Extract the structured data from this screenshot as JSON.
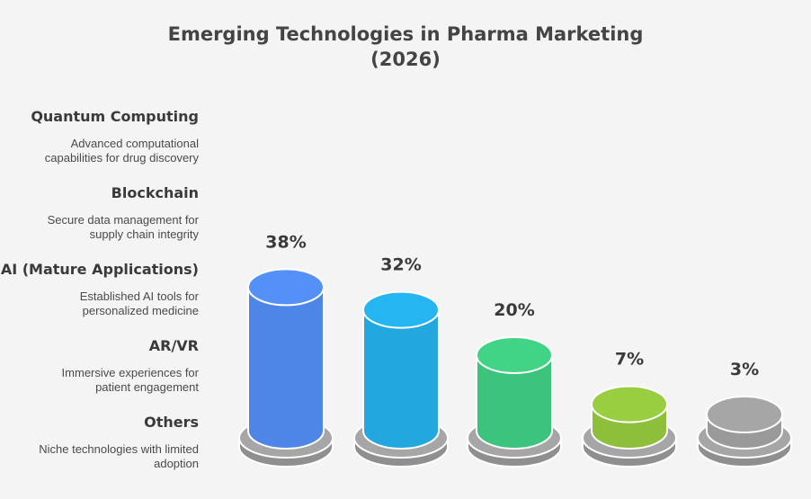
{
  "title_lines": [
    "Emerging Technologies in Pharma Marketing",
    "(2026)"
  ],
  "legend": [
    {
      "name": "Quantum Computing",
      "desc_lines": [
        "Advanced computational",
        "capabilities for drug discovery"
      ]
    },
    {
      "name": "Blockchain",
      "desc_lines": [
        "Secure data management for",
        "supply chain integrity"
      ]
    },
    {
      "name": "AI (Mature Applications)",
      "desc_lines": [
        "Established AI tools for",
        "personalized medicine"
      ]
    },
    {
      "name": "AR/VR",
      "desc_lines": [
        "Immersive experiences for",
        "patient engagement"
      ]
    },
    {
      "name": "Others",
      "desc_lines": [
        "Niche technologies with limited",
        "adoption"
      ]
    }
  ],
  "chart_data": {
    "type": "bar",
    "title": "Emerging Technologies in Pharma Marketing (2026)",
    "categories": [
      "Quantum Computing",
      "Blockchain",
      "AI (Mature Applications)",
      "AR/VR",
      "Others"
    ],
    "values": [
      38,
      32,
      20,
      7,
      3
    ],
    "value_labels": [
      "38%",
      "32%",
      "20%",
      "7%",
      "3%"
    ],
    "colors": [
      "#4d86e6",
      "#22a8de",
      "#3cc47c",
      "#8dbf3a",
      "#9a9a9a"
    ],
    "unit": "%",
    "legend_placement": "left"
  }
}
